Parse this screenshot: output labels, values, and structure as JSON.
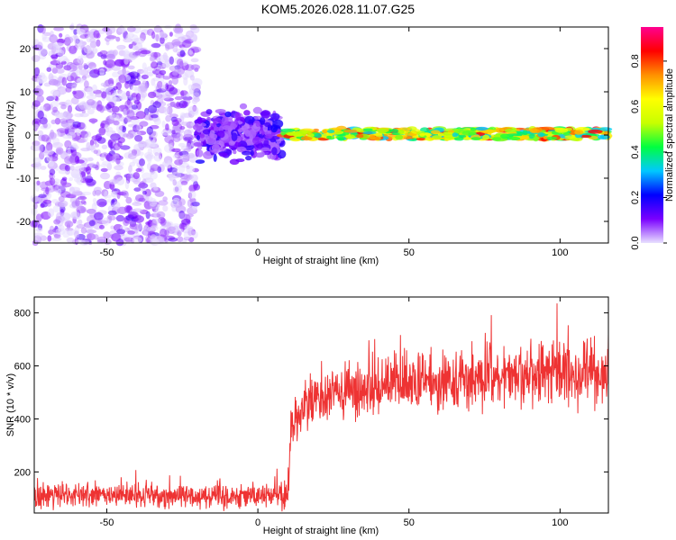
{
  "title": "KOM5.2026.028.11.07.G25",
  "chart_data": [
    {
      "type": "heatmap",
      "xlabel": "Height of straight line (km)",
      "ylabel": "Frequency (Hz)",
      "xlim": [
        -74,
        116
      ],
      "ylim": [
        -25,
        25
      ],
      "xticks": [
        -50,
        0,
        50,
        100
      ],
      "yticks": [
        -20,
        -10,
        0,
        10,
        20
      ],
      "xtick_labels": [
        "-50",
        "0",
        "50",
        "100"
      ],
      "ytick_labels": [
        "-20",
        "-10",
        "0",
        "10",
        "20"
      ],
      "colorbar": {
        "label": "Normalized spectral amplitude",
        "range": [
          0,
          0.95
        ],
        "ticks": [
          0.0,
          0.2,
          0.4,
          0.6,
          0.8
        ],
        "tick_labels": [
          "0.0",
          "0.2",
          "0.4",
          "0.6",
          "0.8"
        ],
        "colors": [
          "#e8e0ff",
          "#7a00ff",
          "#0000ff",
          "#00c8ff",
          "#00ff40",
          "#c8ff00",
          "#ffff00",
          "#ff9000",
          "#ff0000",
          "#ff0090"
        ]
      },
      "regions": [
        {
          "x_range": [
            -74,
            -20
          ],
          "freq_range": [
            -25,
            25
          ],
          "amplitude_range": [
            0.0,
            0.15
          ],
          "pattern": "scattered speckle"
        },
        {
          "x_range": [
            -20,
            8
          ],
          "freq_range": [
            -5,
            5
          ],
          "amplitude_range": [
            0.05,
            0.2
          ],
          "pattern": "dense cluster near 0 Hz"
        },
        {
          "x_range": [
            8,
            116
          ],
          "freq_range": [
            -1,
            1.5
          ],
          "amplitude_range": [
            0.3,
            0.95
          ],
          "pattern": "narrow band at 0-1 Hz"
        }
      ]
    },
    {
      "type": "line",
      "xlabel": "Height of straight line (km)",
      "ylabel": "SNR (10 * v/v)",
      "xlim": [
        -74,
        116
      ],
      "ylim": [
        45,
        860
      ],
      "xticks": [
        -50,
        0,
        50,
        100
      ],
      "yticks": [
        200,
        400,
        600,
        800
      ],
      "xtick_labels": [
        "-50",
        "0",
        "50",
        "100"
      ],
      "ytick_labels": [
        "200",
        "400",
        "600",
        "800"
      ],
      "series": [
        {
          "color": "#ee3333",
          "trend_x": [
            -74,
            -50,
            -20,
            0,
            10,
            11,
            15,
            25,
            40,
            60,
            80,
            100,
            116
          ],
          "trend_y": [
            110,
            110,
            112,
            110,
            115,
            380,
            450,
            490,
            520,
            540,
            560,
            575,
            580
          ],
          "noise_amplitude": [
            50,
            50,
            50,
            50,
            55,
            110,
            120,
            120,
            120,
            120,
            125,
            130,
            130
          ]
        }
      ]
    }
  ]
}
